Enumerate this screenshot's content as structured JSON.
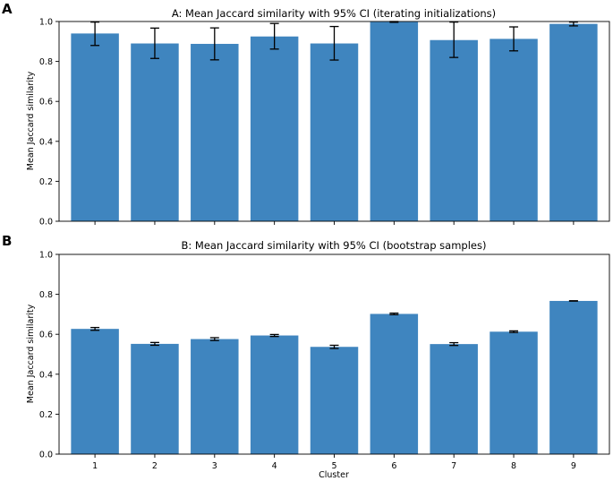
{
  "chart_data": [
    {
      "type": "bar",
      "panel_label": "A",
      "title": "A: Mean Jaccard similarity with 95% CI (iterating initializations)",
      "xlabel": "",
      "ylabel": "Mean Jaccard similarity",
      "categories": [
        "1",
        "2",
        "3",
        "4",
        "5",
        "6",
        "7",
        "8",
        "9"
      ],
      "values": [
        0.94,
        0.89,
        0.888,
        0.925,
        0.89,
        0.998,
        0.907,
        0.913,
        0.988
      ],
      "ci_low": [
        0.88,
        0.815,
        0.808,
        0.862,
        0.807,
        0.996,
        0.82,
        0.853,
        0.978
      ],
      "ci_high": [
        0.997,
        0.967,
        0.968,
        0.99,
        0.975,
        1.0,
        0.997,
        0.973,
        0.997
      ],
      "ylim": [
        0.0,
        1.0
      ],
      "yticks": [
        "0.0",
        "0.2",
        "0.4",
        "0.6",
        "0.8",
        "1.0"
      ],
      "show_xticklabels": false,
      "color": "#3f85bf"
    },
    {
      "type": "bar",
      "panel_label": "B",
      "title": "B: Mean Jaccard similarity with 95% CI (bootstrap samples)",
      "xlabel": "Cluster",
      "ylabel": "Mean Jaccard similarity",
      "categories": [
        "1",
        "2",
        "3",
        "4",
        "5",
        "6",
        "7",
        "8",
        "9"
      ],
      "values": [
        0.627,
        0.552,
        0.576,
        0.594,
        0.537,
        0.702,
        0.551,
        0.613,
        0.767
      ],
      "ci_low": [
        0.62,
        0.545,
        0.569,
        0.589,
        0.529,
        0.698,
        0.544,
        0.609,
        0.766
      ],
      "ci_high": [
        0.634,
        0.559,
        0.583,
        0.599,
        0.545,
        0.706,
        0.558,
        0.617,
        0.768
      ],
      "ylim": [
        0.0,
        1.0
      ],
      "yticks": [
        "0.0",
        "0.2",
        "0.4",
        "0.6",
        "0.8",
        "1.0"
      ],
      "show_xticklabels": true,
      "color": "#3f85bf"
    }
  ]
}
